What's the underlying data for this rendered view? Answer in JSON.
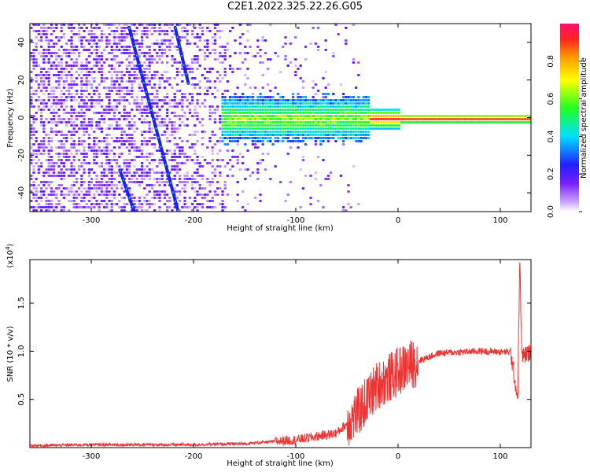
{
  "figure": {
    "title": "C2E1.2022.325.22.26.G05"
  },
  "chart_data": [
    {
      "type": "heatmap",
      "xlabel": "Height of straight line (km)",
      "ylabel": "Frequency (Hz)",
      "xlim": [
        -360,
        130
      ],
      "ylim": [
        -50,
        50
      ],
      "xticks": [
        -300,
        -200,
        -100,
        0,
        100
      ],
      "yticks": [
        -40,
        -20,
        0,
        20,
        40
      ],
      "colormap": "rainbow (violet-blue-cyan-green-yellow-orange-red)",
      "colorbar": {
        "label": "Normalized spectral amplitude",
        "range": [
          0.0,
          1.0
        ],
        "ticks": [
          "0.0",
          "0.2",
          "0.4",
          "0.6",
          "0.8"
        ]
      },
      "features": [
        {
          "name": "dense noise",
          "x_range": [
            -360,
            -130
          ],
          "y_range": [
            -50,
            50
          ],
          "amplitude": 0.2
        },
        {
          "name": "carrier band",
          "x_range": [
            -170,
            130
          ],
          "y_center": 0,
          "amplitude": 0.9
        },
        {
          "name": "diagonal streak",
          "points": [
            [
              -263,
              48
            ],
            [
              -215,
              -50
            ]
          ]
        },
        {
          "name": "diagonal streak",
          "points": [
            [
              -218,
              48
            ],
            [
              -205,
              18
            ]
          ]
        },
        {
          "name": "diagonal streak",
          "points": [
            [
              -272,
              -28
            ],
            [
              -258,
              -50
            ]
          ]
        }
      ]
    },
    {
      "type": "line",
      "xlabel": "Height of straight line (km)",
      "ylabel": "SNR (10 * v/v)",
      "y_multiplier_label": "(x10",
      "y_multiplier_exp": "4",
      "xlim": [
        -360,
        130
      ],
      "ylim": [
        0,
        19500
      ],
      "xticks": [
        -300,
        -200,
        -100,
        0,
        100
      ],
      "yticks": [
        "0.5",
        "1.0",
        "1.5"
      ],
      "line_color": "#ee3333",
      "x": [
        -360,
        -300,
        -200,
        -150,
        -100,
        -60,
        -40,
        -20,
        -5,
        5,
        20,
        40,
        80,
        110,
        117,
        119,
        121,
        130
      ],
      "values": [
        200,
        300,
        300,
        400,
        800,
        1500,
        3500,
        6500,
        7500,
        8200,
        9000,
        9800,
        10000,
        9900,
        5000,
        19500,
        9500,
        9900
      ]
    }
  ]
}
